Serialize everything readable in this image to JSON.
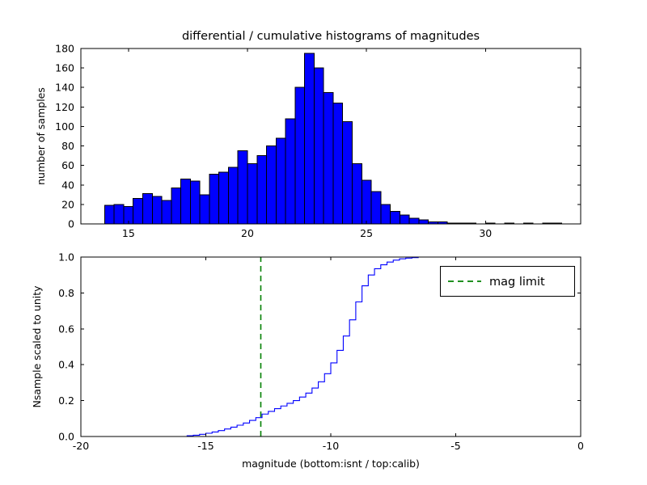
{
  "figure": {
    "title": "differential / cumulative histograms of magnitudes",
    "background": "#ffffff"
  },
  "colors": {
    "bar_fill": "#0000ff",
    "bar_edge": "#000000",
    "line": "#0000ff",
    "mag_limit": "#008000",
    "axis": "#000000"
  },
  "chart_data": [
    {
      "type": "bar",
      "title": "differential / cumulative histograms of magnitudes",
      "ylabel": "number of samples",
      "bin_start": 14.0,
      "bin_width": 0.4,
      "counts": [
        19,
        20,
        18,
        26,
        31,
        28,
        24,
        37,
        46,
        44,
        30,
        51,
        53,
        58,
        75,
        62,
        70,
        80,
        88,
        108,
        140,
        175,
        160,
        135,
        124,
        105,
        62,
        45,
        33,
        20,
        13,
        9,
        6,
        4,
        2,
        2,
        1,
        1,
        1,
        0,
        1,
        0,
        1,
        0,
        1,
        0,
        1,
        1
      ],
      "xlim": [
        13,
        34
      ],
      "ylim": [
        0,
        180
      ],
      "xticks": [
        15,
        20,
        25,
        30
      ],
      "xtick_labels": [
        "15",
        "20",
        "25",
        "30"
      ],
      "yticks": [
        0,
        20,
        40,
        60,
        80,
        100,
        120,
        140,
        160,
        180
      ],
      "ytick_labels": [
        "0",
        "20",
        "40",
        "60",
        "80",
        "100",
        "120",
        "140",
        "160",
        "180"
      ],
      "grid": false
    },
    {
      "type": "line",
      "ylabel": "Nsample scaled to unity",
      "xlabel": "magnitude (bottom:isnt / top:calib)",
      "xlim": [
        -20,
        0
      ],
      "ylim": [
        0,
        1.0
      ],
      "xticks": [
        -20,
        -15,
        -10,
        -5,
        0
      ],
      "xtick_labels": [
        "-20",
        "-15",
        "-10",
        "-5",
        "0"
      ],
      "yticks": [
        0.0,
        0.2,
        0.4,
        0.6,
        0.8,
        1.0
      ],
      "ytick_labels": [
        "0.0",
        "0.2",
        "0.4",
        "0.6",
        "0.8",
        "1.0"
      ],
      "mag_limit": -12.8,
      "legend": {
        "label": "mag limit",
        "line_color": "#008000",
        "line_style": "dashed",
        "position": "upper right"
      },
      "steps": [
        [
          -15.75,
          0.004
        ],
        [
          -15.5,
          0.007
        ],
        [
          -15.25,
          0.012
        ],
        [
          -15.0,
          0.018
        ],
        [
          -14.75,
          0.025
        ],
        [
          -14.5,
          0.033
        ],
        [
          -14.25,
          0.042
        ],
        [
          -14.0,
          0.052
        ],
        [
          -13.75,
          0.063
        ],
        [
          -13.5,
          0.075
        ],
        [
          -13.25,
          0.09
        ],
        [
          -13.0,
          0.105
        ],
        [
          -12.75,
          0.125
        ],
        [
          -12.5,
          0.14
        ],
        [
          -12.25,
          0.155
        ],
        [
          -12.0,
          0.17
        ],
        [
          -11.75,
          0.185
        ],
        [
          -11.5,
          0.2
        ],
        [
          -11.25,
          0.22
        ],
        [
          -11.0,
          0.242
        ],
        [
          -10.75,
          0.27
        ],
        [
          -10.5,
          0.305
        ],
        [
          -10.25,
          0.35
        ],
        [
          -10.0,
          0.41
        ],
        [
          -9.75,
          0.48
        ],
        [
          -9.5,
          0.56
        ],
        [
          -9.25,
          0.65
        ],
        [
          -9.0,
          0.75
        ],
        [
          -8.75,
          0.84
        ],
        [
          -8.5,
          0.9
        ],
        [
          -8.25,
          0.935
        ],
        [
          -8.0,
          0.957
        ],
        [
          -7.75,
          0.972
        ],
        [
          -7.5,
          0.983
        ],
        [
          -7.25,
          0.99
        ],
        [
          -7.0,
          0.994
        ],
        [
          -6.75,
          0.997
        ],
        [
          -6.5,
          1.0
        ]
      ]
    }
  ]
}
